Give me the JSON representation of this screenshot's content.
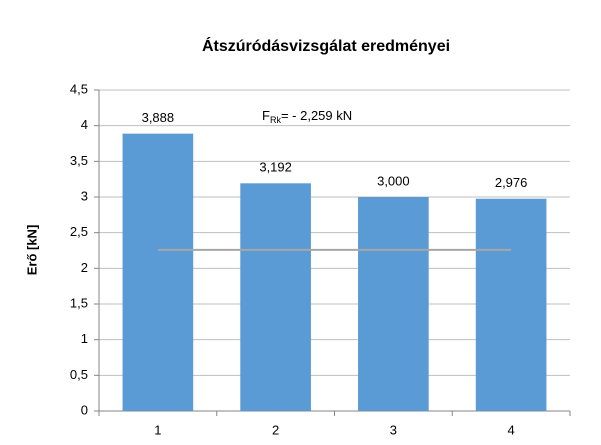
{
  "chart_data": {
    "type": "bar",
    "title": "Átszúródásvizsgálat eredményei",
    "y_label": "Erő [kN]",
    "categories": [
      "1",
      "2",
      "3",
      "4"
    ],
    "values": [
      3.888,
      3.192,
      3.0,
      2.976
    ],
    "value_labels": [
      "3,888",
      "3,192",
      "3,000",
      "2,976"
    ],
    "color": "#5b9bd5",
    "ylim": [
      0,
      4.5
    ],
    "yticks": [
      0,
      {
        "value": 0.5,
        "label": "0,5"
      },
      1,
      {
        "value": 1.5,
        "label": "1,5"
      },
      2,
      {
        "value": 2.5,
        "label": "2,5"
      },
      3,
      {
        "value": 3.5,
        "label": "3,5"
      },
      4,
      {
        "value": 4.5,
        "label": "4,5"
      }
    ],
    "grid": true,
    "reference_line": {
      "value": 2.259,
      "color": "#a6a6a6"
    },
    "annotation": {
      "symbol": "F",
      "subscript": "Rk",
      "text": "= - 2,259 kN"
    }
  }
}
